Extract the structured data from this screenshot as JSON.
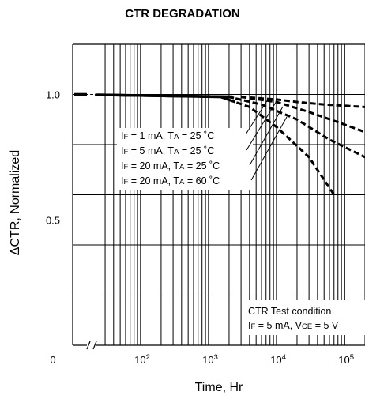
{
  "chart_data": {
    "type": "line",
    "title": "CTR DEGRADATION",
    "xlabel": "Time, Hr",
    "ylabel": "ΔCTR, Normalized",
    "x_scale": "log",
    "y_axis_break": true,
    "xlim": [
      10,
      200000
    ],
    "ylim": [
      0,
      1.2
    ],
    "x_ticks": [
      {
        "value": 100,
        "base": "10",
        "exp": "2"
      },
      {
        "value": 1000,
        "base": "10",
        "exp": "3"
      },
      {
        "value": 10000,
        "base": "10",
        "exp": "4"
      },
      {
        "value": 100000,
        "base": "10",
        "exp": "5"
      }
    ],
    "y_ticks": [
      {
        "value": 0,
        "label": "0"
      },
      {
        "value": 0.5,
        "label": "0.5"
      },
      {
        "value": 1.0,
        "label": "1.0"
      }
    ],
    "grid": true,
    "series": [
      {
        "name": "IF = 1 mA, TA = 25 ˚C",
        "style": "dashed",
        "x": [
          10,
          3000,
          10000,
          20000,
          50000,
          200000
        ],
        "y": [
          1.0,
          0.99,
          0.98,
          0.97,
          0.96,
          0.95
        ]
      },
      {
        "name": "IF = 5 mA, TA = 25 ˚C",
        "style": "dashed",
        "x": [
          10,
          3000,
          10000,
          30000,
          100000,
          200000
        ],
        "y": [
          1.0,
          0.99,
          0.97,
          0.93,
          0.88,
          0.85
        ]
      },
      {
        "name": "IF = 20 mA, TA = 25 ˚C",
        "style": "dashed",
        "x": [
          10,
          2000,
          6000,
          20000,
          60000,
          200000
        ],
        "y": [
          1.0,
          0.99,
          0.96,
          0.9,
          0.82,
          0.75
        ]
      },
      {
        "name": "IF = 20 mA, TA = 60 ˚C",
        "style": "dashed",
        "x": [
          10,
          1500,
          4000,
          10000,
          30000,
          70000
        ],
        "y": [
          1.0,
          0.99,
          0.95,
          0.87,
          0.75,
          0.6
        ]
      }
    ],
    "legend": [
      {
        "pre": "I",
        "sub1": "F",
        "mid": " = 1 mA, T",
        "sub2": "A",
        "post": " = 25 ˚C"
      },
      {
        "pre": "I",
        "sub1": "F",
        "mid": " = 5 mA, T",
        "sub2": "A",
        "post": " = 25 ˚C"
      },
      {
        "pre": "I",
        "sub1": "F",
        "mid": " = 20 mA, T",
        "sub2": "A",
        "post": " = 25 ˚C"
      },
      {
        "pre": "I",
        "sub1": "F",
        "mid": " = 20 mA, T",
        "sub2": "A",
        "post": " = 60 ˚C"
      }
    ],
    "legend_position": "center-left",
    "annotation": {
      "line1": "CTR Test condition",
      "line2": {
        "pre": "I",
        "sub1": "F",
        "mid": " = 5 mA, V",
        "sub2": "CE",
        "post": " = 5 V"
      }
    }
  }
}
